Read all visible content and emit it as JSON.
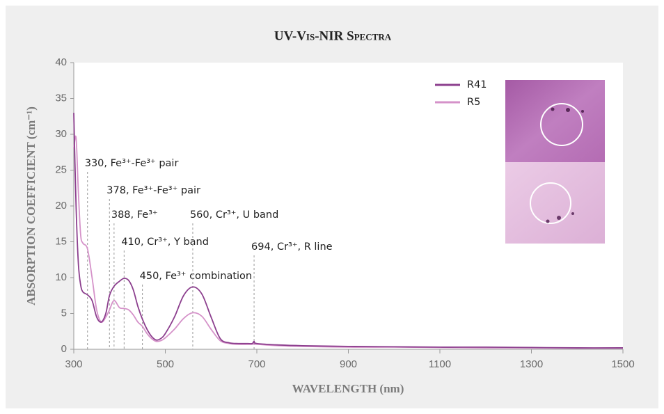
{
  "chart_data": {
    "type": "line",
    "title": "UV-Vis-NIR Spectra",
    "x_label": "WAVELENGTH (nm)",
    "y_label": "ABSORPTION COEFFICIENT (cm⁻¹)",
    "x": [
      300,
      305,
      310,
      315,
      320,
      330,
      340,
      350,
      360,
      370,
      378,
      388,
      400,
      410,
      420,
      430,
      440,
      450,
      460,
      470,
      480,
      490,
      500,
      520,
      540,
      560,
      580,
      600,
      620,
      640,
      660,
      680,
      690,
      694,
      700,
      750,
      800,
      900,
      1000,
      1100,
      1200,
      1300,
      1400,
      1500
    ],
    "series": [
      {
        "name": "R41",
        "color": "#8c3f8e",
        "values": [
          33,
          20,
          12,
          9,
          8,
          7.6,
          6.8,
          4.5,
          3.8,
          5,
          7.5,
          8.8,
          9.5,
          9.9,
          9.6,
          8.3,
          6,
          4.2,
          2.8,
          1.8,
          1.3,
          1.5,
          2.2,
          4.5,
          7.5,
          8.7,
          7.7,
          4.5,
          1.5,
          0.9,
          0.8,
          0.8,
          0.8,
          1.1,
          0.8,
          0.6,
          0.5,
          0.4,
          0.35,
          0.3,
          0.3,
          0.25,
          0.2,
          0.2
        ]
      },
      {
        "name": "R5",
        "color": "#d592c9",
        "values": [
          28,
          29.5,
          22,
          16,
          14.8,
          14,
          10,
          5.5,
          3.8,
          4.5,
          5.5,
          6.8,
          5.8,
          5.7,
          5.5,
          4.8,
          3.8,
          3.2,
          2.2,
          1.5,
          1.1,
          1.2,
          1.6,
          2.8,
          4.3,
          5.1,
          4.6,
          2.8,
          1.2,
          0.8,
          0.7,
          0.7,
          0.7,
          0.8,
          0.7,
          0.5,
          0.4,
          0.3,
          0.3,
          0.25,
          0.2,
          0.2,
          0.15,
          0.15
        ]
      }
    ],
    "annotations": [
      {
        "label": "330, Fe³⁺-Fe³⁺ pair",
        "x": 330
      },
      {
        "label": "378, Fe³⁺-Fe³⁺ pair",
        "x": 378
      },
      {
        "label": "388, Fe³⁺",
        "x": 388
      },
      {
        "label": "410, Cr³⁺, Y band",
        "x": 410
      },
      {
        "label": "450, Fe³⁺ combination",
        "x": 450
      },
      {
        "label": "560, Cr³⁺, U band",
        "x": 560
      },
      {
        "label": "694, Cr³⁺, R line",
        "x": 694
      }
    ],
    "xlim": [
      300,
      1500
    ],
    "xticks": [
      300,
      500,
      700,
      900,
      1100,
      1300,
      1500
    ],
    "ylim": [
      0,
      40
    ],
    "yticks": [
      0,
      5,
      10,
      15,
      20,
      25,
      30,
      35,
      40
    ],
    "legend": "upper right"
  }
}
